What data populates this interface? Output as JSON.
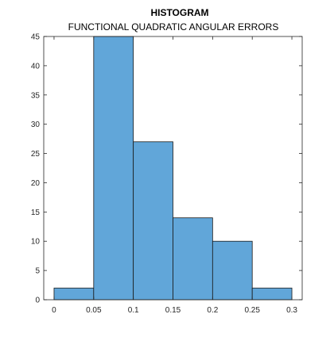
{
  "chart_data": {
    "type": "bar",
    "title": "HISTOGRAM",
    "subtitle": "FUNCTIONAL QUADRATIC ANGULAR ERRORS",
    "xlabel": "",
    "ylabel": "",
    "bin_edges": [
      0,
      0.05,
      0.1,
      0.15,
      0.2,
      0.25,
      0.3
    ],
    "values": [
      2,
      45,
      27,
      14,
      10,
      2
    ],
    "xlim": [
      -0.013,
      0.313
    ],
    "ylim": [
      0,
      45
    ],
    "xticks": [
      0,
      0.05,
      0.1,
      0.15,
      0.2,
      0.25,
      0.3
    ],
    "xtick_labels": [
      "0",
      "0.05",
      "0.1",
      "0.15",
      "0.2",
      "0.25",
      "0.3"
    ],
    "yticks": [
      0,
      5,
      10,
      15,
      20,
      25,
      30,
      35,
      40,
      45
    ],
    "ytick_labels": [
      "0",
      "5",
      "10",
      "15",
      "20",
      "25",
      "30",
      "35",
      "40",
      "45"
    ],
    "grid": false,
    "legend": "none",
    "colors": {
      "bar_fill": "#61a6d9",
      "bar_edge": "#1a1a1a",
      "axis": "#262626"
    }
  }
}
